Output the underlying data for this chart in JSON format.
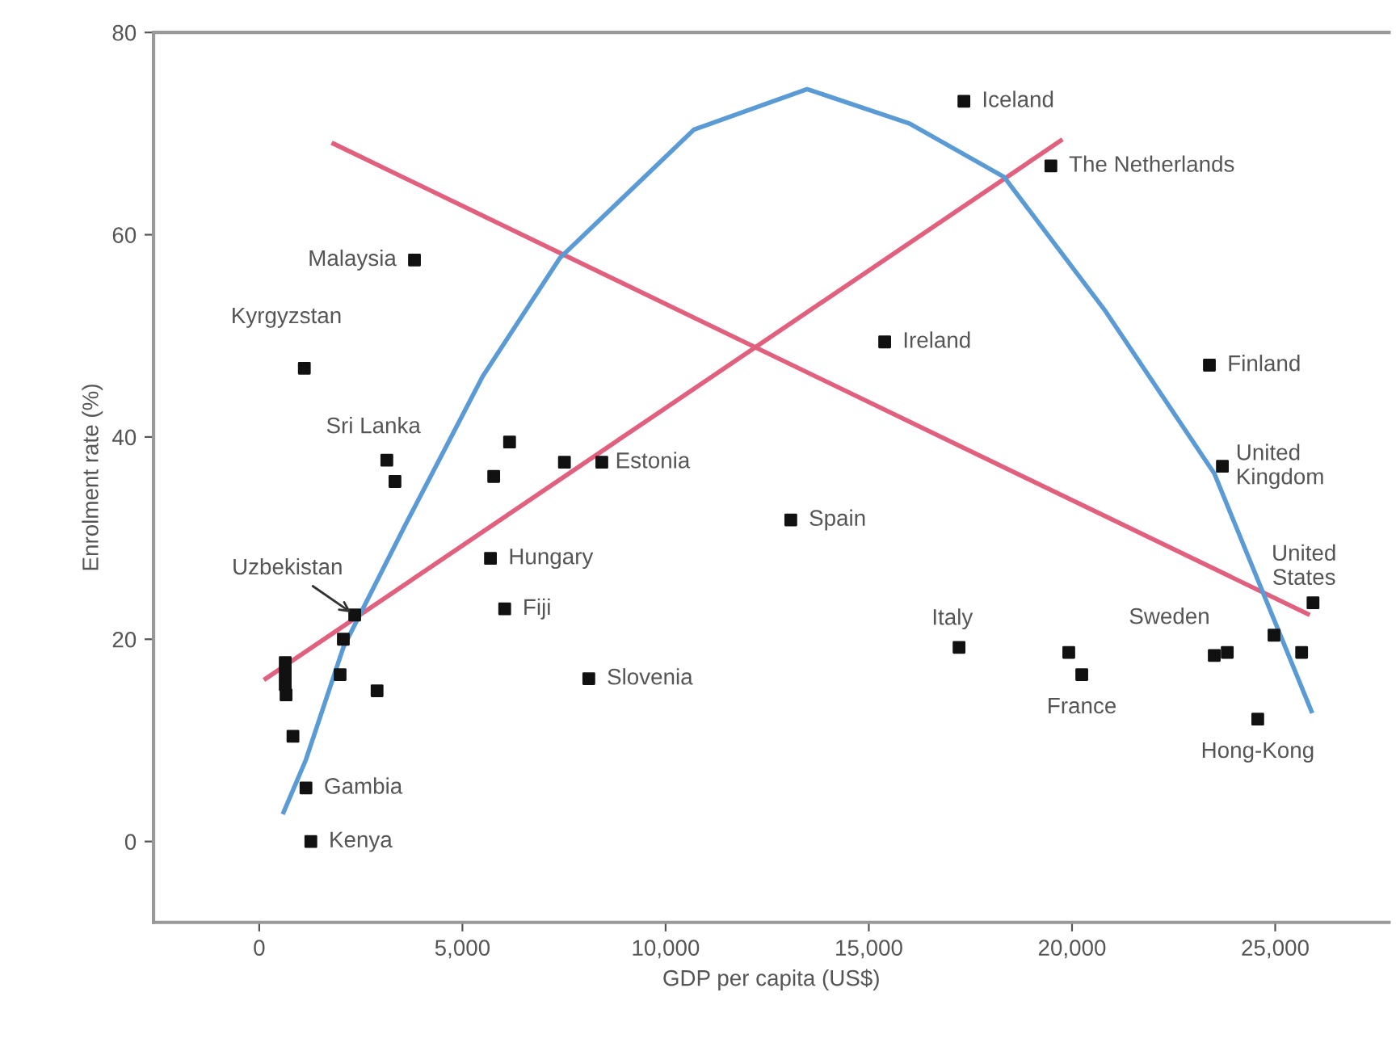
{
  "chart_data": {
    "type": "scatter",
    "xlabel": "GDP per capita (US$)",
    "ylabel": "Enrolment rate (%)",
    "xlim": [
      -2600,
      27800
    ],
    "ylim": [
      -8,
      80
    ],
    "xticks": [
      0,
      {
        "value": 5000,
        "label": "5,000"
      },
      {
        "value": 10000,
        "label": "10,000"
      },
      {
        "value": 15000,
        "label": "15,000"
      },
      {
        "value": 20000,
        "label": "20,000"
      },
      {
        "value": 25000,
        "label": "25,000"
      }
    ],
    "yticks": [
      0,
      20,
      40,
      60,
      80
    ],
    "grid": false,
    "legend": false,
    "series": [
      {
        "type": "line",
        "color": "#e0607e",
        "marker": "none",
        "x": [
          1830,
          25800
        ],
        "values": [
          69.0,
          22.5
        ]
      },
      {
        "type": "line",
        "color": "#e0607e",
        "marker": "none",
        "x": [
          160,
          19720
        ],
        "values": [
          16.1,
          69.3
        ]
      },
      {
        "type": "line",
        "color": "#5b9bd5",
        "marker": "none",
        "x": [
          600,
          1150,
          2070,
          3620,
          5500,
          7400,
          10700,
          13480,
          16000,
          18330,
          20830,
          23500,
          25890
        ],
        "values": [
          2.9,
          8.1,
          19.2,
          31.5,
          46,
          57.7,
          70.4,
          74.4,
          71,
          65.7,
          52.4,
          36.4,
          12.9
        ]
      },
      {
        "color": "#111111",
        "marker": "square",
        "x": [
          17340,
          19480,
          3820,
          1110,
          15390,
          23380,
          23700,
          25930,
          3140,
          3340,
          6160,
          5770,
          7510,
          8430,
          13080,
          5690,
          6040,
          8110,
          2350,
          2070,
          1990,
          2900,
          640,
          640,
          640,
          660,
          830,
          1150,
          1270,
          17220,
          19920,
          20240,
          23500,
          23820,
          24570,
          24970,
          25650
        ],
        "values": [
          73.2,
          66.8,
          57.5,
          46.8,
          49.4,
          47.1,
          37.1,
          23.6,
          37.7,
          35.6,
          39.5,
          36.1,
          37.5,
          37.5,
          31.8,
          28.0,
          23.0,
          16.1,
          22.4,
          20.0,
          16.5,
          14.9,
          17.7,
          16.6,
          15.5,
          14.5,
          10.4,
          5.3,
          0,
          19.2,
          18.7,
          16.5,
          18.4,
          18.7,
          12.1,
          20.4,
          18.7
        ]
      }
    ],
    "annotations": [
      {
        "text": "Iceland",
        "x": 17340,
        "y": 73.2
      },
      {
        "text": "The Netherlands",
        "x": 19480,
        "y": 66.8
      },
      {
        "text": "Malaysia",
        "x": 3820,
        "y": 57.5
      },
      {
        "text": "Kyrgyzstan",
        "x": 1110,
        "y": 46.8
      },
      {
        "text": "Ireland",
        "x": 15390,
        "y": 49.4
      },
      {
        "text": "Finland",
        "x": 23380,
        "y": 47.1
      },
      {
        "text": "United\nKingdom",
        "x": 23700,
        "y": 37.1
      },
      {
        "text": "United\nStates",
        "x": 25930,
        "y": 23.6
      },
      {
        "text": "Sri Lanka",
        "x": 3140,
        "y": 37.7
      },
      {
        "text": "Estonia",
        "x": 8430,
        "y": 37.5
      },
      {
        "text": "Spain",
        "x": 13080,
        "y": 31.8
      },
      {
        "text": "Hungary",
        "x": 5690,
        "y": 28.0
      },
      {
        "text": "Fiji",
        "x": 6040,
        "y": 23.0
      },
      {
        "text": "Slovenia",
        "x": 8110,
        "y": 16.1
      },
      {
        "text": "Uzbekistan",
        "x": 2350,
        "y": 22.4
      },
      {
        "text": "Gambia",
        "x": 1150,
        "y": 5.3
      },
      {
        "text": "Kenya",
        "x": 1270,
        "y": 0
      },
      {
        "text": "Italy",
        "x": 17220,
        "y": 19.2
      },
      {
        "text": "France",
        "x": 20240,
        "y": 16.5
      },
      {
        "text": "Sweden",
        "x": 23500,
        "y": 18.4
      },
      {
        "text": "Hong-Kong",
        "x": 24570,
        "y": 12.1
      }
    ]
  }
}
